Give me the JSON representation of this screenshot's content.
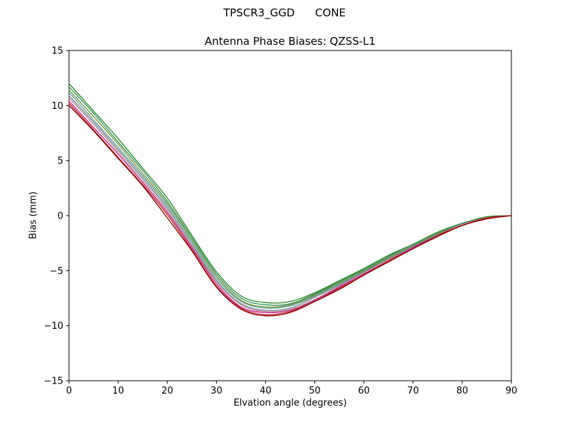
{
  "chart_data": {
    "type": "line",
    "suptitle": "TPSCR3_GGD      CONE",
    "title": "Antenna Phase Biases: QZSS-L1",
    "xlabel": "Elvation angle (degrees)",
    "ylabel": "Bias (mm)",
    "xlim": [
      0,
      90
    ],
    "ylim": [
      -15,
      15
    ],
    "xticks": [
      0,
      10,
      20,
      30,
      40,
      50,
      60,
      70,
      80,
      90
    ],
    "yticks": [
      -15,
      -10,
      -5,
      0,
      5,
      10,
      15
    ],
    "grid": false,
    "legend": "none",
    "x": [
      0,
      5,
      10,
      15,
      20,
      25,
      30,
      35,
      40,
      45,
      50,
      55,
      60,
      65,
      70,
      75,
      80,
      85,
      90
    ],
    "series": [
      {
        "name": "line-01",
        "color": "#228b22",
        "values": [
          12.0,
          9.5,
          7.0,
          4.3,
          1.6,
          -1.8,
          -5.1,
          -7.3,
          -7.9,
          -7.8,
          -7.0,
          -5.9,
          -4.8,
          -3.6,
          -2.6,
          -1.5,
          -0.7,
          -0.1,
          0.0
        ]
      },
      {
        "name": "line-02",
        "color": "#2e8b57",
        "values": [
          11.7,
          9.3,
          6.7,
          4.1,
          1.3,
          -2.0,
          -5.3,
          -7.5,
          -8.1,
          -8.0,
          -7.1,
          -6.0,
          -4.9,
          -3.7,
          -2.6,
          -1.6,
          -0.7,
          -0.2,
          0.0
        ]
      },
      {
        "name": "line-03",
        "color": "#6b8e23",
        "values": [
          11.4,
          9.0,
          6.5,
          3.8,
          1.1,
          -2.2,
          -5.5,
          -7.7,
          -8.3,
          -8.1,
          -7.2,
          -6.1,
          -5.0,
          -3.8,
          -2.7,
          -1.6,
          -0.8,
          -0.2,
          0.0
        ]
      },
      {
        "name": "line-04",
        "color": "#5f9ea0",
        "values": [
          11.2,
          8.7,
          6.2,
          3.6,
          0.9,
          -2.4,
          -5.7,
          -7.8,
          -8.4,
          -8.2,
          -7.3,
          -6.2,
          -5.1,
          -3.9,
          -2.8,
          -1.7,
          -0.8,
          -0.2,
          0.0
        ]
      },
      {
        "name": "line-05",
        "color": "#708090",
        "values": [
          10.9,
          8.5,
          6.0,
          3.4,
          0.7,
          -2.6,
          -5.9,
          -8.0,
          -8.6,
          -8.4,
          -7.4,
          -6.3,
          -5.1,
          -3.9,
          -2.8,
          -1.7,
          -0.8,
          -0.2,
          0.0
        ]
      },
      {
        "name": "line-06",
        "color": "#bc8f8f",
        "values": [
          10.7,
          8.3,
          5.8,
          3.2,
          0.5,
          -2.8,
          -6.0,
          -8.1,
          -8.7,
          -8.5,
          -7.6,
          -6.4,
          -5.2,
          -4.0,
          -2.9,
          -1.8,
          -0.8,
          -0.2,
          0.0
        ]
      },
      {
        "name": "line-07",
        "color": "#c71585",
        "values": [
          10.4,
          8.0,
          5.6,
          3.0,
          0.3,
          -2.9,
          -6.2,
          -8.3,
          -8.8,
          -8.6,
          -7.7,
          -6.5,
          -5.3,
          -4.1,
          -2.9,
          -1.8,
          -0.9,
          -0.2,
          0.0
        ]
      },
      {
        "name": "line-08",
        "color": "#b22222",
        "values": [
          10.2,
          7.8,
          5.3,
          2.8,
          0.1,
          -3.1,
          -6.4,
          -8.4,
          -9.0,
          -8.7,
          -7.8,
          -6.6,
          -5.4,
          -4.1,
          -3.0,
          -1.8,
          -0.9,
          -0.2,
          0.0
        ]
      },
      {
        "name": "line-09",
        "color": "#8b0000",
        "values": [
          10.0,
          7.7,
          5.2,
          2.7,
          -0.2,
          -3.2,
          -6.5,
          -8.5,
          -9.1,
          -8.8,
          -7.8,
          -6.7,
          -5.4,
          -4.2,
          -3.0,
          -1.9,
          -0.9,
          -0.3,
          0.0
        ]
      }
    ]
  }
}
